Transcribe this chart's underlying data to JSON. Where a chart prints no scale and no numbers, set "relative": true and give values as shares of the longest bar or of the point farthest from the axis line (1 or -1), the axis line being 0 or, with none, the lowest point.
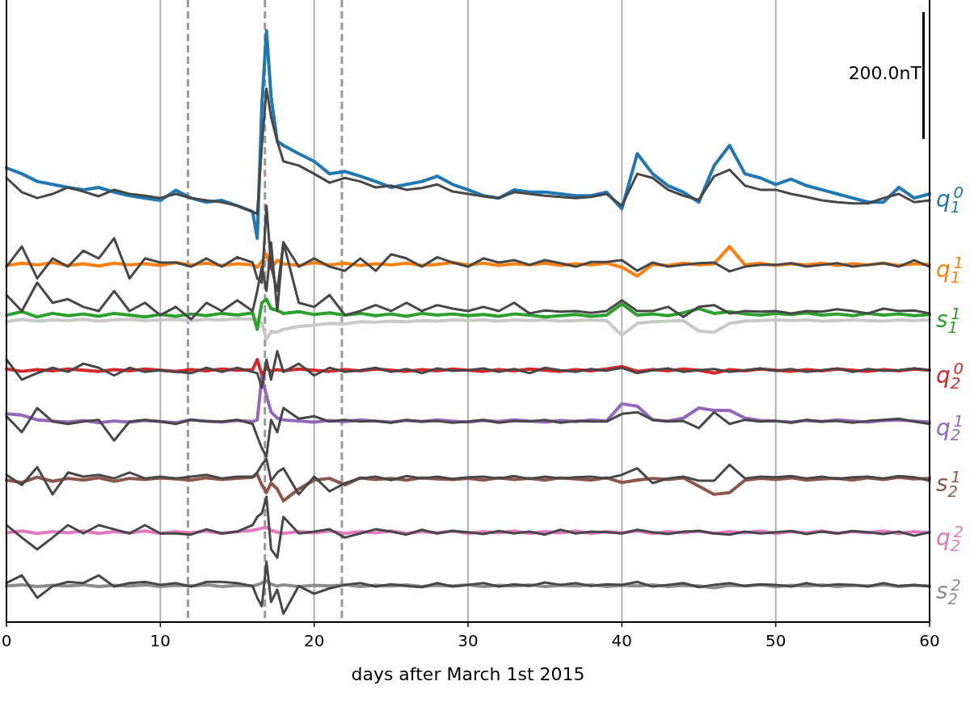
{
  "chart_data": {
    "type": "line",
    "relative": true,
    "xlabel": "days after March 1st 2015",
    "xlim": [
      0,
      60
    ],
    "xticks": [
      0,
      10,
      20,
      30,
      40,
      50,
      60
    ],
    "grid": "x",
    "legend": "right",
    "line_style": "solid",
    "marker": "none",
    "x": [
      0,
      1,
      2,
      3,
      4,
      5,
      6,
      7,
      8,
      9,
      10,
      11,
      12,
      13,
      14,
      15,
      16,
      16.3,
      16.6,
      16.9,
      17.2,
      17.6,
      18,
      19,
      20,
      21,
      22,
      23,
      24,
      25,
      26,
      27,
      28,
      29,
      30,
      31,
      32,
      33,
      34,
      35,
      36,
      37,
      38,
      39,
      40,
      41,
      42,
      43,
      44,
      45,
      46,
      47,
      48,
      49,
      50,
      51,
      52,
      53,
      54,
      55,
      56,
      57,
      58,
      59,
      60
    ],
    "annotations": [
      "200.0nT"
    ],
    "ref_lines": [
      {
        "axis": "x",
        "value": 11.8,
        "color": "#999999",
        "line_style": "dashed"
      },
      {
        "axis": "x",
        "value": 16.8,
        "color": "#999999",
        "line_style": "dashed"
      },
      {
        "axis": "x",
        "value": 21.8,
        "color": "#999999",
        "line_style": "dashed"
      }
    ],
    "series": [
      {
        "color": "#c8c8c8",
        "values": [
          0.508,
          0.512,
          0.509,
          0.511,
          0.51,
          0.512,
          0.509,
          0.511,
          0.512,
          0.51,
          0.511,
          0.512,
          0.51,
          0.512,
          0.511,
          0.513,
          0.512,
          0.512,
          0.505,
          0.478,
          0.492,
          0.49,
          0.495,
          0.5,
          0.502,
          0.505,
          0.504,
          0.508,
          0.507,
          0.509,
          0.508,
          0.51,
          0.509,
          0.511,
          0.51,
          0.511,
          0.509,
          0.511,
          0.51,
          0.511,
          0.509,
          0.51,
          0.511,
          0.51,
          0.485,
          0.505,
          0.508,
          0.509,
          0.51,
          0.492,
          0.49,
          0.505,
          0.509,
          0.51,
          0.511,
          0.51,
          0.511,
          0.509,
          0.51,
          0.511,
          0.51,
          0.509,
          0.511,
          0.51,
          0.511
        ]
      },
      {
        "name": "q$_{1}$$^{0}$",
        "color": "#1f77b4",
        "values": [
          0.768,
          0.758,
          0.745,
          0.74,
          0.735,
          0.731,
          0.735,
          0.727,
          0.721,
          0.717,
          0.713,
          0.73,
          0.717,
          0.71,
          0.713,
          0.704,
          0.694,
          0.649,
          0.874,
          1,
          0.888,
          0.813,
          0.806,
          0.792,
          0.779,
          0.758,
          0.762,
          0.754,
          0.745,
          0.735,
          0.74,
          0.745,
          0.754,
          0.74,
          0.731,
          0.721,
          0.717,
          0.731,
          0.727,
          0.727,
          0.724,
          0.721,
          0.721,
          0.727,
          0.699,
          0.792,
          0.758,
          0.738,
          0.727,
          0.71,
          0.772,
          0.806,
          0.758,
          0.751,
          0.74,
          0.749,
          0.738,
          0.731,
          0.724,
          0.717,
          0.71,
          0.71,
          0.735,
          0.717,
          0.724
        ]
      },
      {
        "name": "q$_{1}$$^{1}$",
        "color": "#ff7f0e",
        "values": [
          0.603,
          0.607,
          0.604,
          0.608,
          0.603,
          0.606,
          0.602,
          0.607,
          0.604,
          0.606,
          0.603,
          0.608,
          0.604,
          0.607,
          0.603,
          0.606,
          0.604,
          0.6,
          0.61,
          0.622,
          0.598,
          0.612,
          0.606,
          0.603,
          0.608,
          0.604,
          0.607,
          0.603,
          0.606,
          0.604,
          0.607,
          0.603,
          0.605,
          0.608,
          0.604,
          0.607,
          0.603,
          0.606,
          0.604,
          0.607,
          0.603,
          0.606,
          0.604,
          0.607,
          0.6,
          0.585,
          0.605,
          0.603,
          0.607,
          0.604,
          0.606,
          0.635,
          0.604,
          0.607,
          0.603,
          0.606,
          0.604,
          0.607,
          0.603,
          0.606,
          0.604,
          0.607,
          0.603,
          0.606,
          0.605
        ]
      },
      {
        "name": "s$_{1}$$^{1}$",
        "color": "#2ca02c",
        "values": [
          0.519,
          0.525,
          0.516,
          0.522,
          0.518,
          0.521,
          0.517,
          0.522,
          0.519,
          0.516,
          0.52,
          0.517,
          0.521,
          0.518,
          0.522,
          0.519,
          0.523,
          0.495,
          0.54,
          0.546,
          0.53,
          0.527,
          0.522,
          0.525,
          0.52,
          0.523,
          0.519,
          0.522,
          0.518,
          0.521,
          0.517,
          0.522,
          0.519,
          0.521,
          0.518,
          0.52,
          0.517,
          0.521,
          0.519,
          0.516,
          0.518,
          0.52,
          0.517,
          0.519,
          0.538,
          0.519,
          0.521,
          0.518,
          0.523,
          0.53,
          0.522,
          0.525,
          0.521,
          0.519,
          0.522,
          0.52,
          0.523,
          0.519,
          0.521,
          0.518,
          0.522,
          0.519,
          0.521,
          0.518,
          0.52
        ]
      },
      {
        "name": "q$_{2}$$^{0}$",
        "color": "#d62728",
        "values": [
          0.428,
          0.424,
          0.427,
          0.425,
          0.428,
          0.426,
          0.424,
          0.427,
          0.425,
          0.428,
          0.426,
          0.424,
          0.427,
          0.425,
          0.428,
          0.426,
          0.427,
          0.444,
          0.418,
          0.43,
          0.424,
          0.427,
          0.425,
          0.428,
          0.426,
          0.424,
          0.427,
          0.425,
          0.428,
          0.426,
          0.424,
          0.427,
          0.425,
          0.428,
          0.426,
          0.424,
          0.427,
          0.425,
          0.428,
          0.426,
          0.424,
          0.427,
          0.425,
          0.428,
          0.432,
          0.424,
          0.427,
          0.425,
          0.428,
          0.426,
          0.421,
          0.427,
          0.425,
          0.428,
          0.426,
          0.424,
          0.427,
          0.425,
          0.428,
          0.426,
          0.424,
          0.427,
          0.425,
          0.428,
          0.426
        ]
      },
      {
        "name": "q$_{2}$$^{1}$",
        "color": "#9467bd",
        "values": [
          0.352,
          0.35,
          0.342,
          0.34,
          0.338,
          0.341,
          0.337,
          0.34,
          0.338,
          0.341,
          0.339,
          0.337,
          0.342,
          0.34,
          0.338,
          0.341,
          0.339,
          0.342,
          0.415,
          0.383,
          0.355,
          0.345,
          0.342,
          0.34,
          0.338,
          0.341,
          0.339,
          0.342,
          0.34,
          0.338,
          0.341,
          0.339,
          0.342,
          0.34,
          0.338,
          0.341,
          0.339,
          0.342,
          0.34,
          0.338,
          0.341,
          0.339,
          0.342,
          0.34,
          0.369,
          0.365,
          0.342,
          0.34,
          0.345,
          0.362,
          0.358,
          0.358,
          0.345,
          0.341,
          0.34,
          0.338,
          0.341,
          0.339,
          0.342,
          0.34,
          0.338,
          0.341,
          0.342,
          0.34,
          0.338
        ]
      },
      {
        "name": "s$_{2}$$^{1}$",
        "color": "#8c564b",
        "values": [
          0.24,
          0.236,
          0.245,
          0.238,
          0.243,
          0.24,
          0.244,
          0.238,
          0.243,
          0.241,
          0.244,
          0.242,
          0.24,
          0.244,
          0.241,
          0.243,
          0.245,
          0.25,
          0.232,
          0.219,
          0.235,
          0.225,
          0.205,
          0.225,
          0.24,
          0.243,
          0.232,
          0.244,
          0.241,
          0.243,
          0.24,
          0.244,
          0.242,
          0.241,
          0.243,
          0.24,
          0.244,
          0.241,
          0.243,
          0.24,
          0.244,
          0.242,
          0.24,
          0.244,
          0.236,
          0.24,
          0.243,
          0.241,
          0.244,
          0.23,
          0.216,
          0.219,
          0.24,
          0.243,
          0.241,
          0.244,
          0.24,
          0.242,
          0.243,
          0.24,
          0.244,
          0.241,
          0.245,
          0.242,
          0.243
        ]
      },
      {
        "name": "q$_{2}$$^{2}$",
        "color": "#e377c2",
        "values": [
          0.151,
          0.154,
          0.15,
          0.153,
          0.151,
          0.154,
          0.15,
          0.153,
          0.151,
          0.154,
          0.15,
          0.153,
          0.151,
          0.154,
          0.15,
          0.153,
          0.155,
          0.157,
          0.159,
          0.16,
          0.155,
          0.152,
          0.15,
          0.153,
          0.151,
          0.154,
          0.15,
          0.153,
          0.151,
          0.154,
          0.15,
          0.153,
          0.151,
          0.154,
          0.15,
          0.153,
          0.151,
          0.154,
          0.15,
          0.153,
          0.151,
          0.154,
          0.15,
          0.153,
          0.151,
          0.154,
          0.15,
          0.153,
          0.151,
          0.154,
          0.15,
          0.153,
          0.151,
          0.154,
          0.15,
          0.153,
          0.151,
          0.154,
          0.15,
          0.153,
          0.151,
          0.154,
          0.15,
          0.153,
          0.151
        ]
      },
      {
        "name": "s$_{2}$$^{2}$",
        "color": "#8c8c8c",
        "values": [
          0.061,
          0.063,
          0.06,
          0.062,
          0.061,
          0.063,
          0.06,
          0.062,
          0.061,
          0.063,
          0.06,
          0.062,
          0.061,
          0.063,
          0.06,
          0.062,
          0.061,
          0.063,
          0.066,
          0.07,
          0.064,
          0.061,
          0.063,
          0.06,
          0.062,
          0.061,
          0.063,
          0.06,
          0.062,
          0.061,
          0.063,
          0.06,
          0.062,
          0.061,
          0.063,
          0.06,
          0.062,
          0.061,
          0.063,
          0.06,
          0.062,
          0.061,
          0.063,
          0.06,
          0.062,
          0.061,
          0.063,
          0.06,
          0.062,
          0.061,
          0.058,
          0.062,
          0.061,
          0.063,
          0.06,
          0.062,
          0.061,
          0.063,
          0.06,
          0.062,
          0.061,
          0.063,
          0.06,
          0.062,
          0.061
        ]
      },
      {
        "color": "#474747",
        "values": [
          0.751,
          0.727,
          0.717,
          0.724,
          0.735,
          0.728,
          0.72,
          0.731,
          0.724,
          0.721,
          0.717,
          0.724,
          0.717,
          0.713,
          0.71,
          0.704,
          0.694,
          0.69,
          0.806,
          0.902,
          0.854,
          0.813,
          0.779,
          0.772,
          0.758,
          0.743,
          0.751,
          0.745,
          0.735,
          0.738,
          0.731,
          0.734,
          0.74,
          0.728,
          0.724,
          0.72,
          0.717,
          0.727,
          0.724,
          0.721,
          0.719,
          0.717,
          0.719,
          0.724,
          0.704,
          0.758,
          0.751,
          0.731,
          0.721,
          0.714,
          0.754,
          0.765,
          0.738,
          0.731,
          0.731,
          0.724,
          0.719,
          0.713,
          0.71,
          0.708,
          0.708,
          0.717,
          0.724,
          0.71,
          0.713
        ]
      },
      {
        "color": "#474747",
        "values": [
          0.601,
          0.635,
          0.581,
          0.615,
          0.601,
          0.628,
          0.615,
          0.649,
          0.581,
          0.615,
          0.608,
          0.608,
          0.601,
          0.615,
          0.601,
          0.617,
          0.608,
          0.581,
          0.574,
          0.704,
          0.601,
          0.56,
          0.642,
          0.601,
          0.615,
          0.601,
          0.594,
          0.615,
          0.594,
          0.622,
          0.615,
          0.601,
          0.617,
          0.608,
          0.601,
          0.615,
          0.608,
          0.612,
          0.604,
          0.612,
          0.607,
          0.601,
          0.609,
          0.609,
          0.612,
          0.594,
          0.608,
          0.601,
          0.604,
          0.607,
          0.608,
          0.593,
          0.601,
          0.604,
          0.604,
          0.607,
          0.601,
          0.604,
          0.607,
          0.601,
          0.604,
          0.607,
          0.601,
          0.612,
          0.601
        ]
      },
      {
        "color": "#474747",
        "values": [
          0.553,
          0.526,
          0.574,
          0.54,
          0.546,
          0.533,
          0.526,
          0.56,
          0.526,
          0.54,
          0.519,
          0.533,
          0.512,
          0.54,
          0.526,
          0.544,
          0.526,
          0.56,
          0.601,
          0.56,
          0.642,
          0.526,
          0.642,
          0.54,
          0.533,
          0.553,
          0.519,
          0.526,
          0.536,
          0.526,
          0.54,
          0.526,
          0.536,
          0.53,
          0.526,
          0.533,
          0.526,
          0.54,
          0.522,
          0.527,
          0.525,
          0.526,
          0.523,
          0.526,
          0.544,
          0.526,
          0.526,
          0.533,
          0.516,
          0.533,
          0.536,
          0.522,
          0.526,
          0.525,
          0.526,
          0.522,
          0.526,
          0.525,
          0.529,
          0.526,
          0.522,
          0.53,
          0.526,
          0.527,
          0.522
        ]
      },
      {
        "color": "#474747",
        "values": [
          0.444,
          0.41,
          0.421,
          0.43,
          0.423,
          0.437,
          0.43,
          0.417,
          0.43,
          0.423,
          0.426,
          0.423,
          0.421,
          0.43,
          0.423,
          0.43,
          0.423,
          0.421,
          0.396,
          0.444,
          0.41,
          0.458,
          0.423,
          0.437,
          0.417,
          0.43,
          0.423,
          0.426,
          0.43,
          0.423,
          0.428,
          0.421,
          0.429,
          0.425,
          0.426,
          0.429,
          0.423,
          0.428,
          0.421,
          0.43,
          0.426,
          0.423,
          0.428,
          0.425,
          0.43,
          0.421,
          0.426,
          0.429,
          0.423,
          0.426,
          0.428,
          0.423,
          0.426,
          0.429,
          0.425,
          0.428,
          0.423,
          0.426,
          0.429,
          0.423,
          0.428,
          0.425,
          0.426,
          0.429,
          0.426
        ]
      },
      {
        "color": "#474747",
        "values": [
          0.348,
          0.321,
          0.362,
          0.339,
          0.335,
          0.339,
          0.342,
          0.307,
          0.339,
          0.342,
          0.339,
          0.335,
          0.342,
          0.339,
          0.339,
          0.342,
          0.335,
          0.314,
          0.294,
          0.28,
          0.342,
          0.321,
          0.362,
          0.344,
          0.348,
          0.339,
          0.342,
          0.339,
          0.34,
          0.337,
          0.342,
          0.339,
          0.34,
          0.337,
          0.339,
          0.342,
          0.337,
          0.34,
          0.339,
          0.342,
          0.337,
          0.34,
          0.339,
          0.339,
          0.352,
          0.355,
          0.342,
          0.339,
          0.34,
          0.328,
          0.355,
          0.335,
          0.342,
          0.339,
          0.34,
          0.337,
          0.342,
          0.339,
          0.34,
          0.337,
          0.34,
          0.342,
          0.344,
          0.339,
          0.335
        ]
      },
      {
        "color": "#474747",
        "values": [
          0.249,
          0.232,
          0.262,
          0.216,
          0.253,
          0.246,
          0.249,
          0.243,
          0.253,
          0.243,
          0.246,
          0.243,
          0.246,
          0.249,
          0.243,
          0.246,
          0.246,
          0.253,
          0.266,
          0.276,
          0.239,
          0.253,
          0.26,
          0.216,
          0.246,
          0.221,
          0.235,
          0.243,
          0.246,
          0.24,
          0.247,
          0.243,
          0.246,
          0.242,
          0.245,
          0.246,
          0.243,
          0.247,
          0.242,
          0.246,
          0.243,
          0.245,
          0.246,
          0.243,
          0.249,
          0.26,
          0.235,
          0.243,
          0.246,
          0.239,
          0.239,
          0.266,
          0.243,
          0.246,
          0.245,
          0.247,
          0.243,
          0.246,
          0.242,
          0.245,
          0.246,
          0.243,
          0.247,
          0.245,
          0.239
        ]
      },
      {
        "color": "#474747",
        "values": [
          0.164,
          0.143,
          0.123,
          0.143,
          0.164,
          0.15,
          0.164,
          0.157,
          0.15,
          0.164,
          0.15,
          0.15,
          0.148,
          0.157,
          0.15,
          0.153,
          0.164,
          0.178,
          0.184,
          0.212,
          0.123,
          0.109,
          0.178,
          0.15,
          0.153,
          0.157,
          0.143,
          0.15,
          0.157,
          0.153,
          0.148,
          0.156,
          0.15,
          0.154,
          0.152,
          0.149,
          0.154,
          0.15,
          0.153,
          0.148,
          0.156,
          0.15,
          0.153,
          0.152,
          0.15,
          0.156,
          0.152,
          0.149,
          0.153,
          0.154,
          0.15,
          0.148,
          0.153,
          0.15,
          0.152,
          0.154,
          0.149,
          0.153,
          0.15,
          0.154,
          0.152,
          0.149,
          0.153,
          0.146,
          0.152
        ]
      },
      {
        "color": "#474747",
        "values": [
          0.066,
          0.079,
          0.041,
          0.061,
          0.068,
          0.066,
          0.079,
          0.06,
          0.066,
          0.068,
          0.063,
          0.066,
          0.06,
          0.068,
          0.068,
          0.066,
          0.061,
          0.041,
          0.027,
          0.102,
          0.034,
          0.055,
          0.014,
          0.061,
          0.048,
          0.057,
          0.063,
          0.066,
          0.06,
          0.064,
          0.061,
          0.059,
          0.066,
          0.06,
          0.063,
          0.066,
          0.06,
          0.064,
          0.061,
          0.067,
          0.063,
          0.066,
          0.061,
          0.064,
          0.063,
          0.068,
          0.06,
          0.063,
          0.066,
          0.059,
          0.063,
          0.066,
          0.061,
          0.064,
          0.063,
          0.06,
          0.066,
          0.061,
          0.064,
          0.063,
          0.06,
          0.066,
          0.061,
          0.063,
          0.06
        ]
      }
    ]
  }
}
